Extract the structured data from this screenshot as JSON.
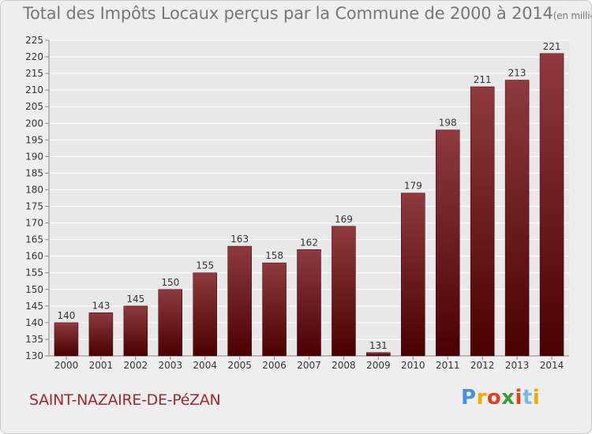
{
  "title": "Total des Impôts Locaux perçus par la Commune de 2000 à 2014",
  "title_unit": "(en milliers d'€)",
  "commune": "SAINT-NAZAIRE-DE-PéZAN",
  "brand": {
    "letters": [
      "P",
      "r",
      "o",
      "x",
      "i",
      "t",
      "i"
    ],
    "colors": [
      "#4a90d9",
      "#f2a900",
      "#e2401c",
      "#3c9a3c",
      "#e2401c",
      "#7ab8e8",
      "#f2a900"
    ]
  },
  "colors": {
    "bar_top": "#8e3a3f",
    "bar_bottom": "#4a0000",
    "grid": "#ffffff",
    "text": "#333333"
  },
  "chart_data": {
    "type": "bar",
    "categories": [
      "2000",
      "2001",
      "2002",
      "2003",
      "2004",
      "2005",
      "2006",
      "2007",
      "2008",
      "2009",
      "2010",
      "2011",
      "2012",
      "2013",
      "2014"
    ],
    "values": [
      140,
      143,
      145,
      150,
      155,
      163,
      158,
      162,
      169,
      131,
      179,
      198,
      211,
      213,
      221
    ],
    "ylim": [
      130,
      225
    ],
    "yticks": [
      130,
      135,
      140,
      145,
      150,
      155,
      160,
      165,
      170,
      175,
      180,
      185,
      190,
      195,
      200,
      205,
      210,
      215,
      220,
      225
    ],
    "xlabel": "",
    "ylabel": "",
    "grid": true
  }
}
